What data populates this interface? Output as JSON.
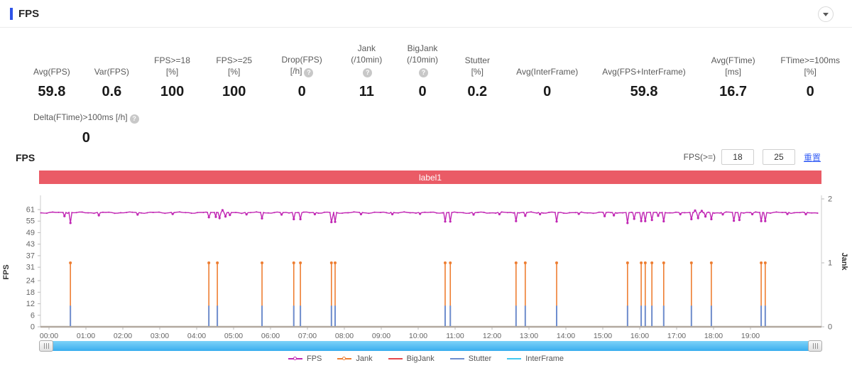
{
  "header": {
    "title": "FPS",
    "accent_color": "#2e54e8"
  },
  "stats": [
    {
      "lines": [
        "Avg(FPS)"
      ],
      "value": "59.8",
      "help": false
    },
    {
      "lines": [
        "Var(FPS)"
      ],
      "value": "0.6",
      "help": false
    },
    {
      "lines": [
        "FPS>=18 [%]"
      ],
      "value": "100",
      "help": false
    },
    {
      "lines": [
        "FPS>=25 [%]"
      ],
      "value": "100",
      "help": false
    },
    {
      "lines": [
        "Drop(FPS) [/h]"
      ],
      "value": "0",
      "help": true
    },
    {
      "lines": [
        "Jank",
        "(/10min)"
      ],
      "value": "11",
      "help": true
    },
    {
      "lines": [
        "BigJank",
        "(/10min)"
      ],
      "value": "0",
      "help": true
    },
    {
      "lines": [
        "Stutter [%]"
      ],
      "value": "0.2",
      "help": false
    },
    {
      "lines": [
        "Avg(InterFrame)"
      ],
      "value": "0",
      "help": false
    },
    {
      "lines": [
        "Avg(FPS+InterFrame)"
      ],
      "value": "59.8",
      "help": false
    },
    {
      "lines": [
        "Avg(FTime) [ms]"
      ],
      "value": "16.7",
      "help": false
    },
    {
      "lines": [
        "FTime>=100ms [%]"
      ],
      "value": "0",
      "help": false
    }
  ],
  "stats_row2": [
    {
      "lines": [
        "Delta(FTime)>100ms [/h]"
      ],
      "value": "0",
      "help": true
    }
  ],
  "chart_section": {
    "title": "FPS",
    "threshold_label": "FPS(>=)",
    "threshold_values": [
      "18",
      "25"
    ],
    "reset_label": "重置",
    "reset_color": "#3a62f5",
    "banner": {
      "text": "label1",
      "color": "#ea5b66"
    }
  },
  "chart_data": {
    "type": "line",
    "title": "FPS",
    "x_axis": {
      "ticks": [
        "00:00",
        "01:00",
        "02:00",
        "03:00",
        "04:00",
        "05:00",
        "06:00",
        "07:00",
        "08:00",
        "09:00",
        "10:00",
        "11:00",
        "12:00",
        "13:00",
        "14:00",
        "15:00",
        "16:00",
        "17:00",
        "18:00",
        "19:00"
      ],
      "hours_total": 20.9
    },
    "y_left": {
      "label": "FPS",
      "ticks": [
        0,
        6,
        12,
        18,
        24,
        31,
        37,
        43,
        49,
        55,
        61
      ],
      "max": 61
    },
    "y_right": {
      "label": "Jank",
      "ticks": [
        0,
        1,
        2
      ],
      "max": 2
    },
    "series": [
      {
        "name": "FPS",
        "color": "#c127b4",
        "legend_marker": "dot",
        "baseline": 59.4,
        "deviations": [
          [
            0.42,
            57.6
          ],
          [
            0.58,
            54
          ],
          [
            1.35,
            58
          ],
          [
            2.4,
            58.4
          ],
          [
            3.35,
            58.7
          ],
          [
            4.33,
            57
          ],
          [
            4.42,
            55.6
          ],
          [
            4.47,
            60.7
          ],
          [
            4.52,
            57.2
          ],
          [
            4.58,
            60.4
          ],
          [
            4.62,
            56.6
          ],
          [
            4.7,
            60.7
          ],
          [
            4.78,
            57.4
          ],
          [
            4.9,
            58.2
          ],
          [
            5.35,
            58.5
          ],
          [
            5.77,
            56.4
          ],
          [
            6.3,
            58.4
          ],
          [
            6.63,
            56
          ],
          [
            6.81,
            56
          ],
          [
            7.2,
            58.6
          ],
          [
            7.65,
            54.5
          ],
          [
            7.75,
            54.6
          ],
          [
            8.45,
            58.6
          ],
          [
            9.3,
            58.6
          ],
          [
            10.05,
            58.8
          ],
          [
            10.73,
            54.8
          ],
          [
            10.87,
            54.8
          ],
          [
            11.5,
            58.4
          ],
          [
            12.2,
            58.6
          ],
          [
            12.65,
            55
          ],
          [
            12.9,
            57.8
          ],
          [
            13.3,
            58.6
          ],
          [
            13.75,
            54.8
          ],
          [
            14.35,
            58.8
          ],
          [
            15.05,
            57.6
          ],
          [
            15.3,
            58
          ],
          [
            15.67,
            54
          ],
          [
            15.85,
            56.2
          ],
          [
            16.04,
            55
          ],
          [
            16.15,
            55
          ],
          [
            16.33,
            55.6
          ],
          [
            16.5,
            57.8
          ],
          [
            16.65,
            54.9
          ],
          [
            17.1,
            58.6
          ],
          [
            17.4,
            56
          ],
          [
            17.5,
            60.5
          ],
          [
            17.58,
            56.6
          ],
          [
            17.68,
            60.3
          ],
          [
            17.78,
            57.4
          ],
          [
            17.94,
            56
          ],
          [
            18.25,
            58.5
          ],
          [
            18.55,
            55.2
          ],
          [
            18.7,
            55.6
          ],
          [
            19.05,
            58.6
          ],
          [
            19.29,
            55
          ],
          [
            19.4,
            55
          ],
          [
            20.0,
            58.7
          ],
          [
            20.5,
            58.6
          ]
        ]
      },
      {
        "name": "Jank",
        "color": "#ee7e32",
        "legend_marker": "dot",
        "event_value": 1,
        "events": [
          0.58,
          4.33,
          4.56,
          5.77,
          6.63,
          6.81,
          7.65,
          7.75,
          10.73,
          10.87,
          12.65,
          12.9,
          13.75,
          15.67,
          16.04,
          16.15,
          16.33,
          16.65,
          17.4,
          17.94,
          19.29,
          19.4
        ]
      },
      {
        "name": "BigJank",
        "color": "#e5484d",
        "legend_marker": "line",
        "events": []
      },
      {
        "name": "Stutter",
        "color": "#6e8ecf",
        "legend_marker": "line",
        "bar_height_fps": 11,
        "events": [
          0.58,
          4.33,
          4.56,
          5.77,
          6.63,
          6.81,
          7.65,
          7.75,
          10.73,
          10.87,
          12.65,
          12.9,
          13.75,
          15.67,
          16.04,
          16.15,
          16.33,
          16.65,
          17.4,
          17.94,
          19.29,
          19.4
        ]
      },
      {
        "name": "InterFrame",
        "color": "#44c9f0",
        "legend_marker": "line",
        "baseline": 0
      }
    ],
    "legend_position": "bottom",
    "grid": false
  }
}
